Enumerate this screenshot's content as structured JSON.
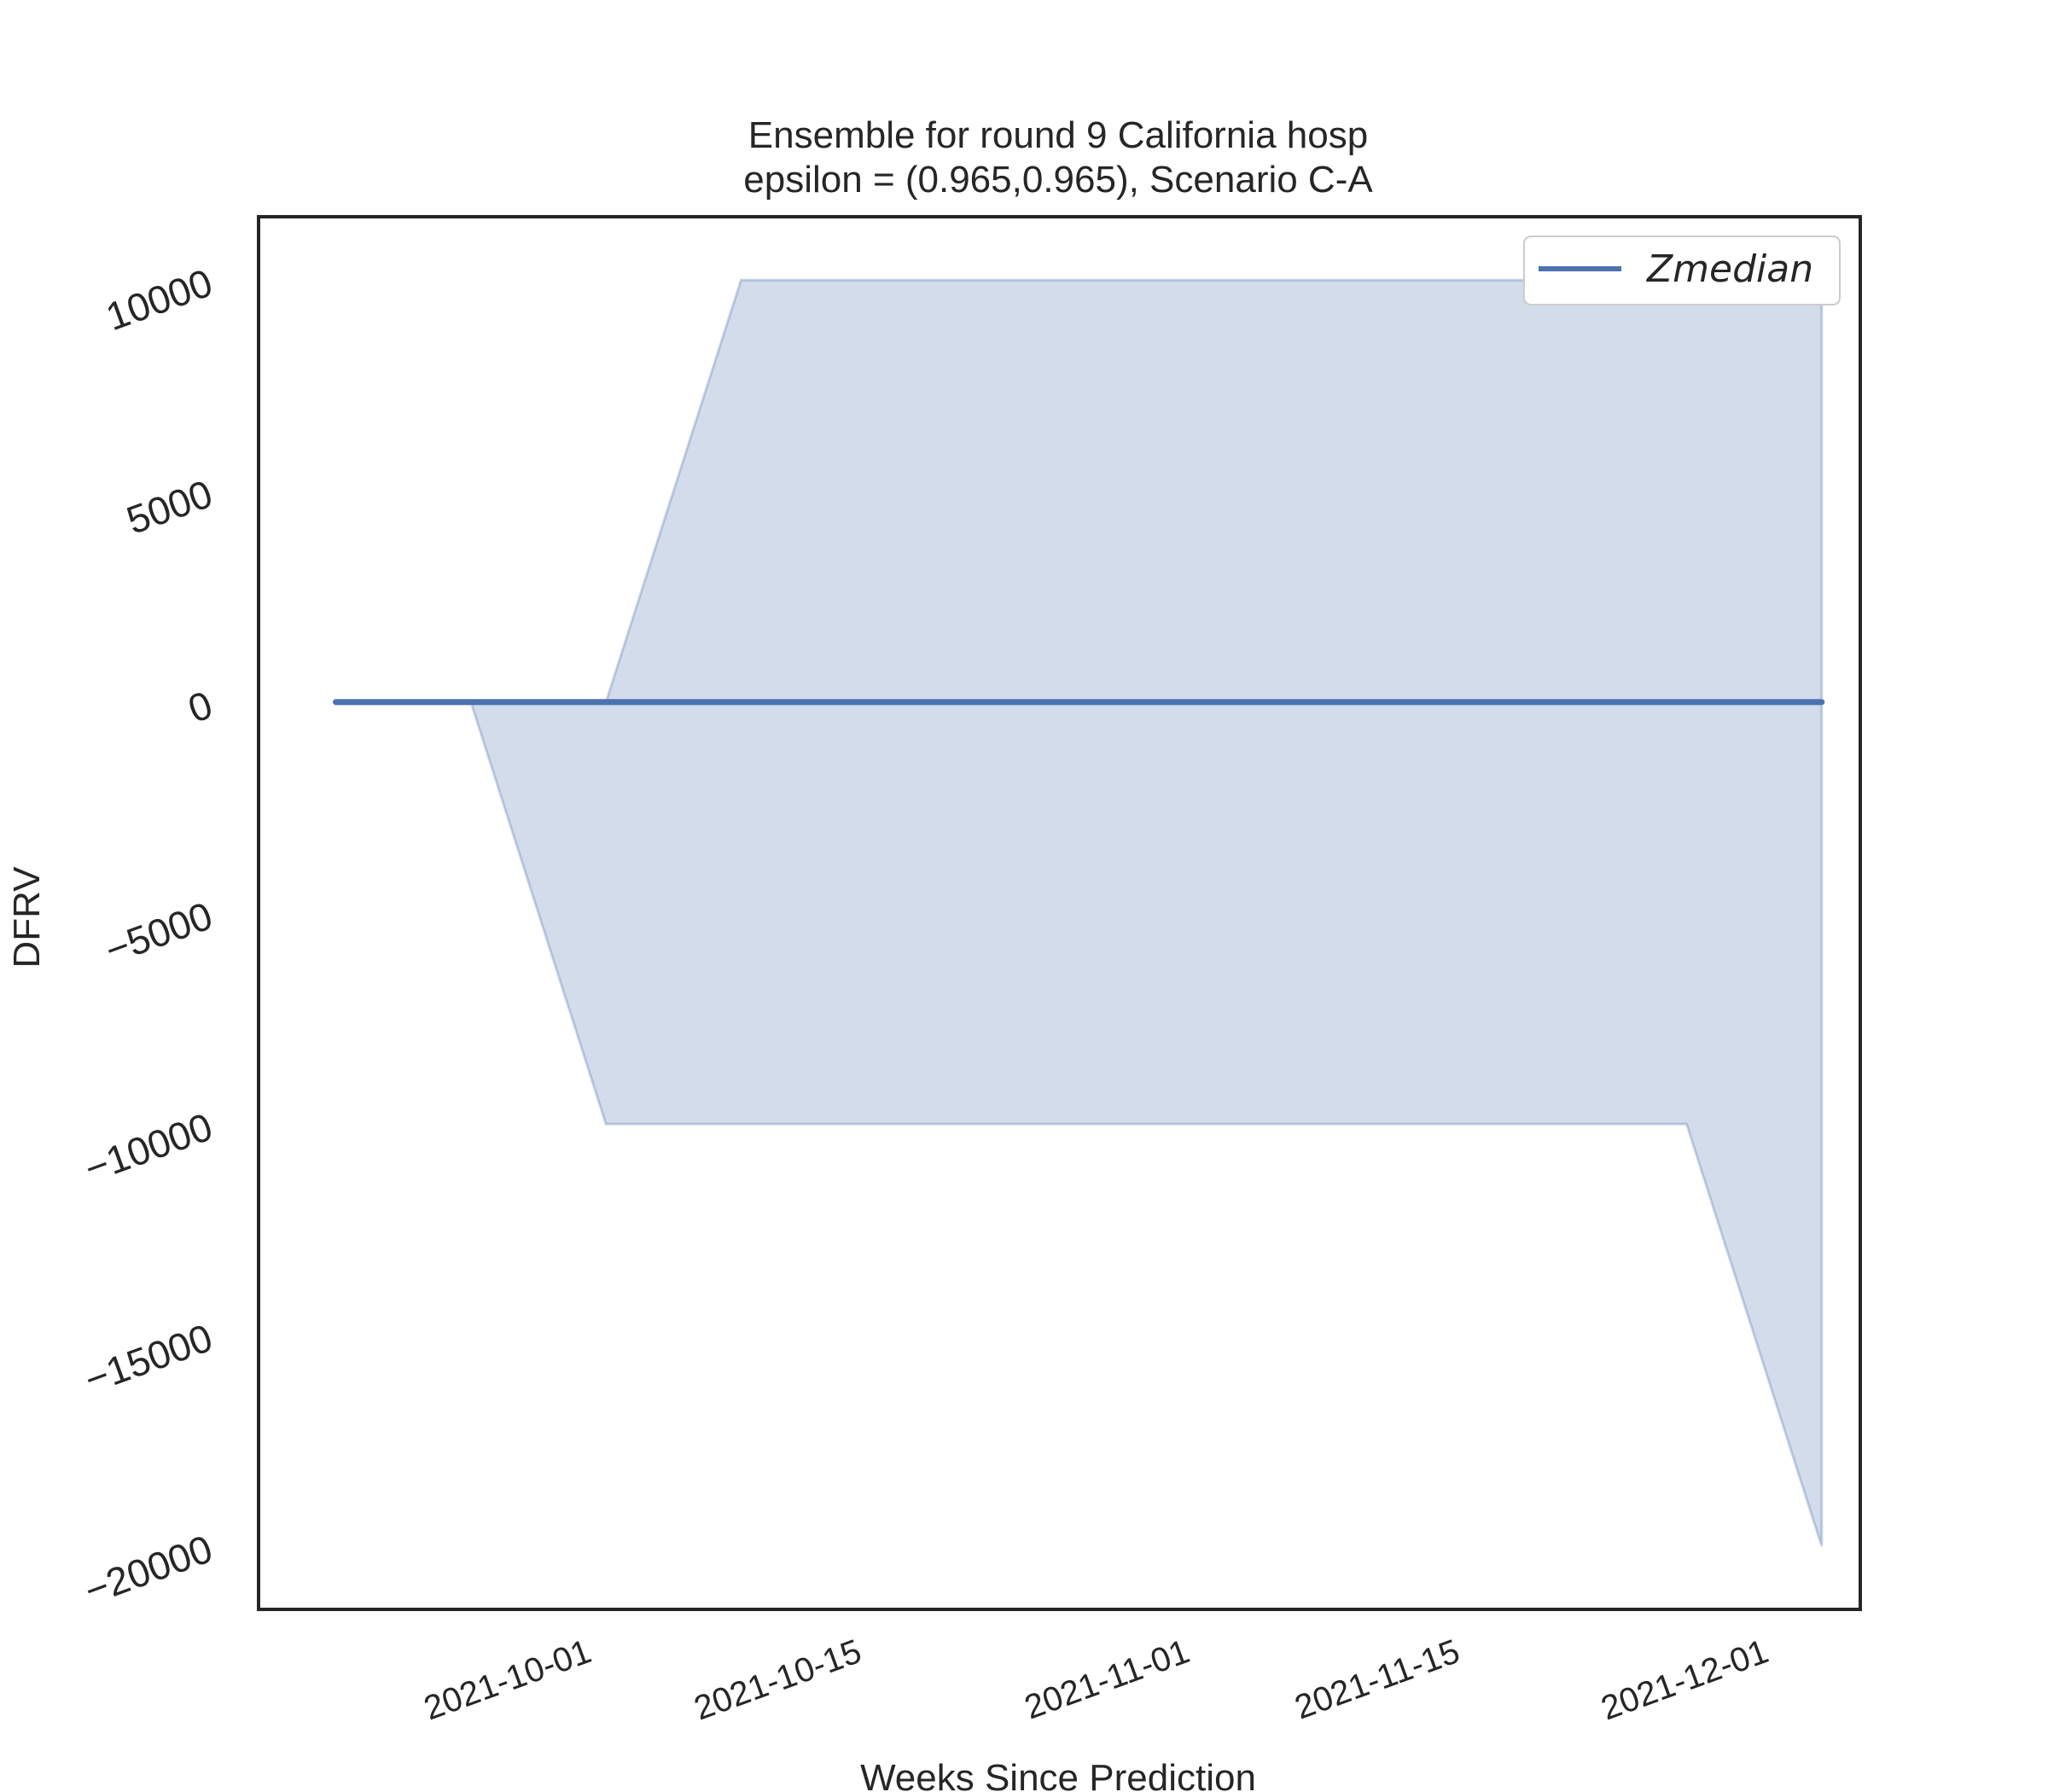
{
  "chart_data": {
    "type": "area",
    "title": "Ensemble for round 9 California  hosp",
    "subtitle": "epsilon = (0.965,0.965), Scenario C-A",
    "xlabel": "Weeks Since Prediction",
    "ylabel": "DFRV",
    "x_axis_type": "date",
    "xlim": [
      "2021-09-14",
      "2021-12-06"
    ],
    "ylim": [
      -21500,
      11500
    ],
    "xticks": [
      "2021-10-01",
      "2021-10-15",
      "2021-11-01",
      "2021-11-15",
      "2021-12-01"
    ],
    "yticks": [
      10000,
      5000,
      0,
      -5000,
      -10000,
      -15000,
      -20000
    ],
    "ytick_labels": [
      "10000",
      "5000",
      "0",
      "−5000",
      "−10000",
      "−15000",
      "−20000"
    ],
    "grid": false,
    "legend_position": "top-right",
    "x": [
      "2021-09-18",
      "2021-09-25",
      "2021-10-02",
      "2021-10-09",
      "2021-10-16",
      "2021-10-23",
      "2021-10-30",
      "2021-11-06",
      "2021-11-13",
      "2021-11-20",
      "2021-11-27",
      "2021-12-04"
    ],
    "series": [
      {
        "name": "Zmedian",
        "color": "#4c72b0",
        "values": [
          0,
          0,
          0,
          0,
          0,
          0,
          0,
          0,
          0,
          0,
          0,
          0
        ]
      }
    ],
    "band": {
      "color": "#4c72b0",
      "opacity": 0.25,
      "lower": [
        0,
        0,
        -10000,
        -10000,
        -10000,
        -10000,
        -10000,
        -10000,
        -10000,
        -10000,
        -10000,
        -20000
      ],
      "upper": [
        0,
        0,
        0,
        10000,
        10000,
        10000,
        10000,
        10000,
        10000,
        10000,
        10000,
        10000
      ]
    }
  }
}
